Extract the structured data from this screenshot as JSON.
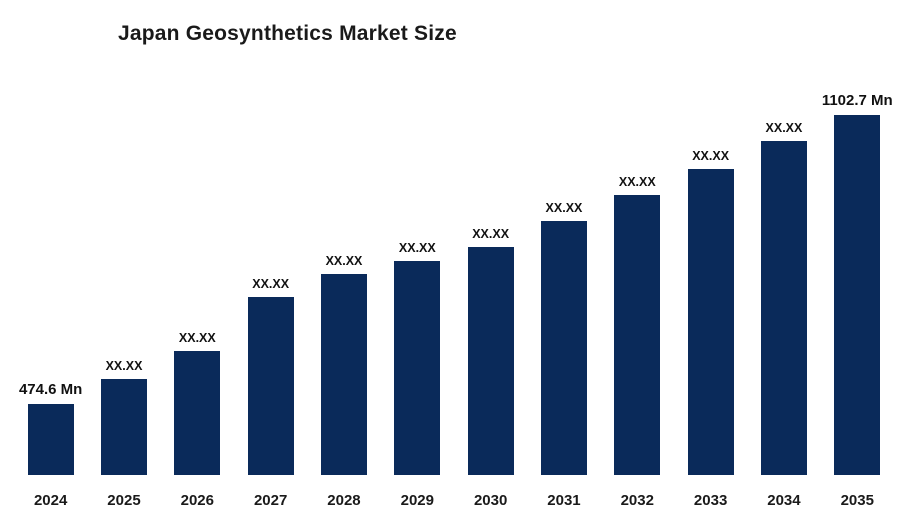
{
  "chart_data": {
    "type": "bar",
    "title": "Japan Geosynthetics Market Size",
    "unit": "Mn",
    "categories": [
      "2024",
      "2025",
      "2026",
      "2027",
      "2028",
      "2029",
      "2030",
      "2031",
      "2032",
      "2033",
      "2034",
      "2035"
    ],
    "values": [
      474.6,
      529,
      590,
      707,
      757,
      785,
      816,
      872,
      929,
      985,
      1046,
      1102.7
    ],
    "bar_labels": [
      "474.6 Mn",
      "XX.XX",
      "XX.XX",
      "XX.XX",
      "XX.XX",
      "XX.XX",
      "XX.XX",
      "XX.XX",
      "XX.XX",
      "XX.XX",
      "XX.XX",
      "1102.7 Mn"
    ],
    "emphasized_labels": [
      0,
      11
    ],
    "bar_color": "#0a2a5a",
    "ylim": [
      320,
      1135
    ],
    "grid": false,
    "legend": false
  }
}
